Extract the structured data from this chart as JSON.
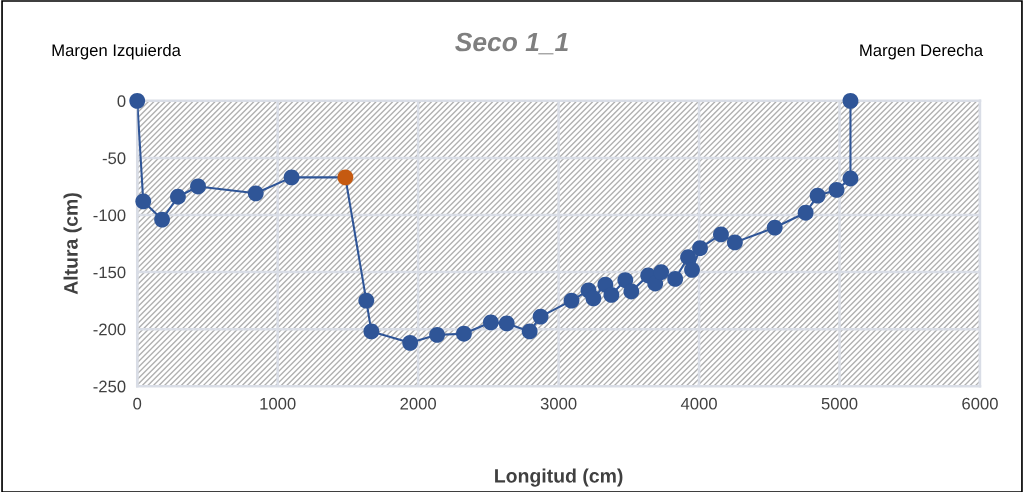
{
  "chart_data": {
    "type": "line",
    "title": "Seco 1_1",
    "xlabel": "Longitud (cm)",
    "ylabel": "Altura (cm)",
    "annotations": [
      "Margen Izquierda",
      "Margen Derecha"
    ],
    "series": [
      {
        "color": "#2f5597",
        "x": [
          0,
          43,
          177,
          290,
          433,
          844,
          1099,
          1482,
          1631,
          1667,
          1943,
          2135,
          2326,
          2518,
          2631,
          2794,
          2872,
          3092,
          3213,
          3248,
          3333,
          3376,
          3475,
          3518,
          3638,
          3688,
          3730,
          3830,
          3922,
          3950,
          4007,
          4156,
          4255,
          4539,
          4759,
          4844,
          4979,
          5078,
          5078
        ],
        "values": [
          0,
          -88,
          -104,
          -84,
          -75,
          -81,
          -67,
          -67,
          -175,
          -202,
          -212,
          -205,
          -204,
          -194,
          -195,
          -202,
          -189,
          -175,
          -166,
          -173,
          -161,
          -170,
          -157,
          -167,
          -153,
          -160,
          -150,
          -156,
          -137,
          -148,
          -129,
          -117,
          -124,
          -111,
          -98,
          -83,
          -78,
          -68,
          0
        ],
        "colors": [
          "#2f5597",
          "#2f5597",
          "#2f5597",
          "#2f5597",
          "#2f5597",
          "#2f5597",
          "#2f5597",
          "#c55a11",
          "#2f5597",
          "#2f5597",
          "#2f5597",
          "#2f5597",
          "#2f5597",
          "#2f5597",
          "#2f5597",
          "#2f5597",
          "#2f5597",
          "#2f5597",
          "#2f5597",
          "#2f5597",
          "#2f5597",
          "#2f5597",
          "#2f5597",
          "#2f5597",
          "#2f5597",
          "#2f5597",
          "#2f5597",
          "#2f5597",
          "#2f5597",
          "#2f5597",
          "#2f5597",
          "#2f5597",
          "#2f5597",
          "#2f5597",
          "#2f5597",
          "#2f5597",
          "#2f5597",
          "#2f5597",
          "#2f5597"
        ]
      }
    ],
    "xlim": [
      0,
      6000
    ],
    "xticks": [
      0,
      1000,
      2000,
      3000,
      4000,
      5000,
      6000
    ],
    "ylim": [
      -250,
      0
    ],
    "yticks": [
      -250,
      -200,
      -150,
      -100,
      -50,
      0
    ],
    "grid": true,
    "legend": false,
    "marker": "circle",
    "line_style": "solid"
  }
}
